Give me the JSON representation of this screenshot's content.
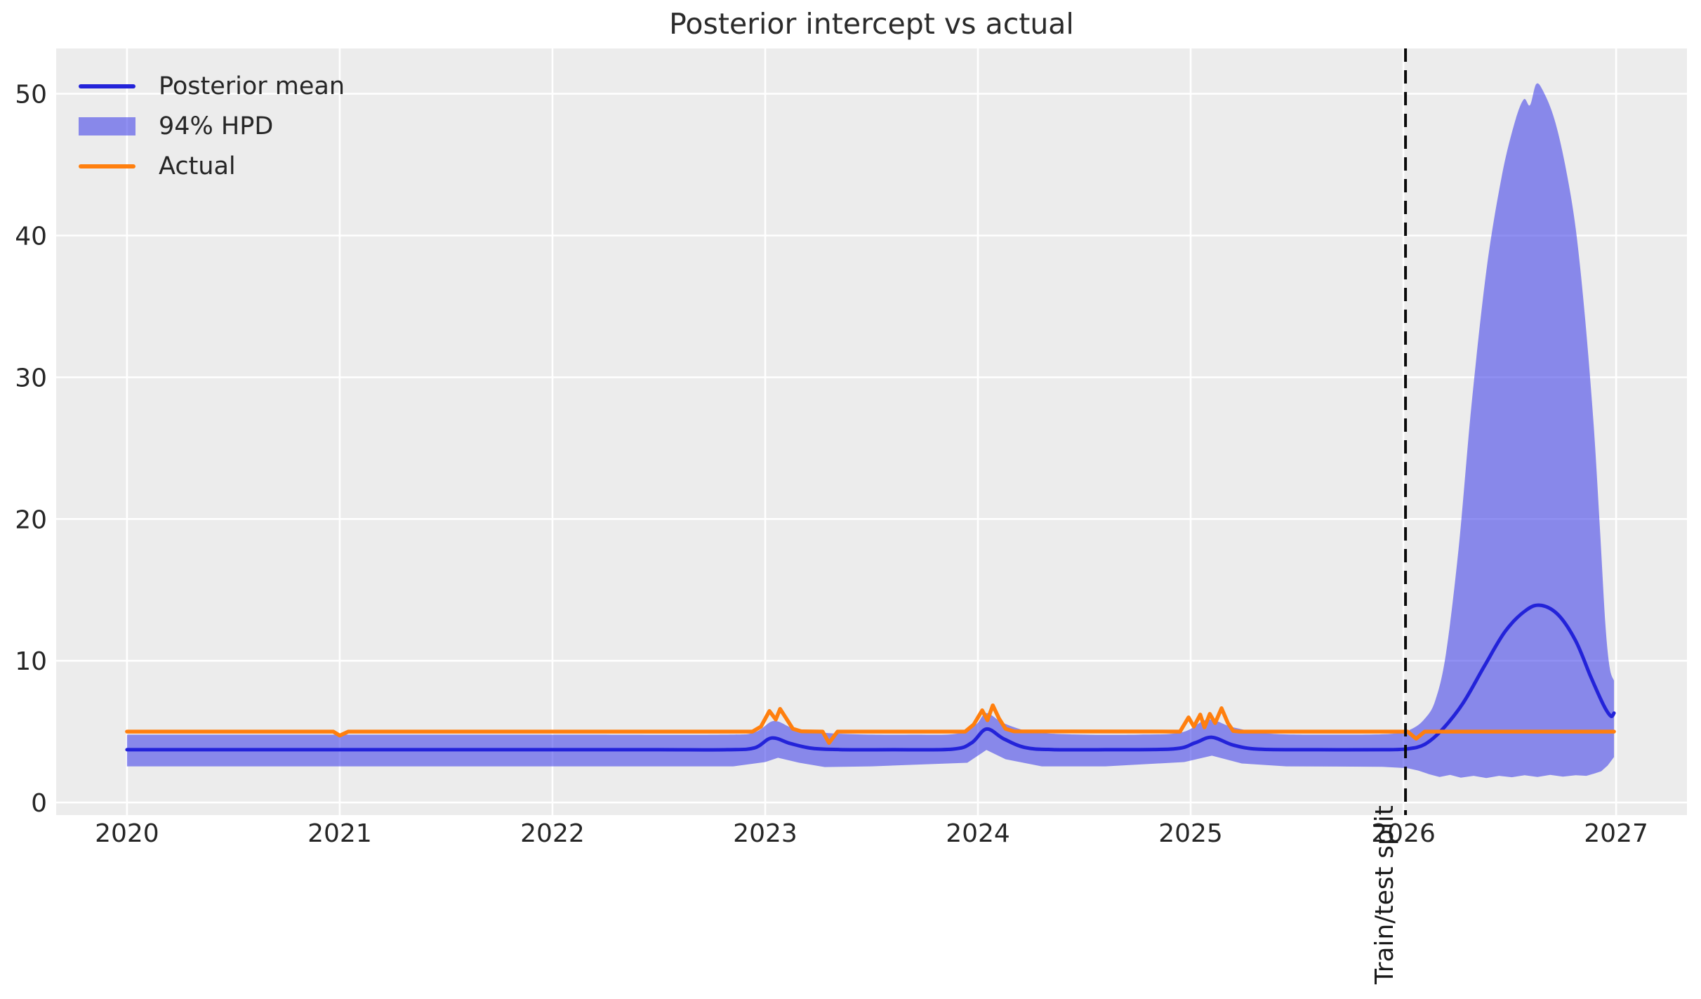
{
  "title": "Posterior intercept vs actual",
  "legend": {
    "items": [
      {
        "label": "Posterior mean",
        "swatch": "line",
        "color": "#2323d9"
      },
      {
        "label": "94% HPD",
        "swatch": "patch",
        "color": "rgba(60,60,232,0.57)"
      },
      {
        "label": "Actual",
        "swatch": "line",
        "color": "#ff7f0e"
      }
    ]
  },
  "annotation": {
    "split_label": "Train/test split",
    "split_year": 2026.01
  },
  "colors": {
    "plot_bg": "#ececec",
    "grid": "#ffffff",
    "mean_line": "#2323d9",
    "actual_line": "#ff7f0e",
    "band_fill": "rgba(60,60,232,0.57)",
    "split_line": "#0a0a0a",
    "text": "#262626"
  },
  "chart_data": {
    "type": "line",
    "title": "Posterior intercept vs actual",
    "xlabel": "",
    "ylabel": "",
    "xlim": [
      2019.667,
      2027.333
    ],
    "ylim": [
      -0.89,
      53.2
    ],
    "grid": true,
    "legend_position": "upper left",
    "x_ticks": [
      2020,
      2021,
      2022,
      2023,
      2024,
      2025,
      2026,
      2027
    ],
    "y_ticks": [
      0,
      10,
      20,
      30,
      40,
      50
    ],
    "vline": {
      "x": 2026.01,
      "style": "dashed",
      "label": "Train/test split"
    },
    "series": [
      {
        "name": "Posterior mean",
        "smooth": true,
        "width": 5,
        "points": [
          [
            2020.0,
            3.72
          ],
          [
            2020.5,
            3.72
          ],
          [
            2021.0,
            3.72
          ],
          [
            2021.5,
            3.72
          ],
          [
            2022.0,
            3.72
          ],
          [
            2022.5,
            3.72
          ],
          [
            2022.82,
            3.72
          ],
          [
            2022.95,
            3.85
          ],
          [
            2023.03,
            4.55
          ],
          [
            2023.12,
            4.15
          ],
          [
            2023.22,
            3.82
          ],
          [
            2023.35,
            3.73
          ],
          [
            2023.6,
            3.72
          ],
          [
            2023.88,
            3.76
          ],
          [
            2023.97,
            4.2
          ],
          [
            2024.04,
            5.18
          ],
          [
            2024.12,
            4.5
          ],
          [
            2024.22,
            3.88
          ],
          [
            2024.35,
            3.73
          ],
          [
            2024.6,
            3.72
          ],
          [
            2024.92,
            3.78
          ],
          [
            2025.02,
            4.2
          ],
          [
            2025.1,
            4.6
          ],
          [
            2025.2,
            4.05
          ],
          [
            2025.32,
            3.76
          ],
          [
            2025.6,
            3.72
          ],
          [
            2025.9,
            3.72
          ],
          [
            2026.02,
            3.78
          ],
          [
            2026.1,
            4.1
          ],
          [
            2026.18,
            5.1
          ],
          [
            2026.28,
            7.0
          ],
          [
            2026.38,
            9.6
          ],
          [
            2026.48,
            12.1
          ],
          [
            2026.58,
            13.6
          ],
          [
            2026.65,
            13.9
          ],
          [
            2026.73,
            13.2
          ],
          [
            2026.81,
            11.4
          ],
          [
            2026.88,
            8.9
          ],
          [
            2026.94,
            6.9
          ],
          [
            2026.975,
            6.1
          ],
          [
            2026.99,
            6.3
          ]
        ]
      },
      {
        "name": "Actual",
        "smooth": false,
        "width": 5.5,
        "points": [
          [
            2020.0,
            5
          ],
          [
            2020.97,
            5
          ],
          [
            2021.0,
            4.72
          ],
          [
            2021.04,
            5
          ],
          [
            2022.94,
            5
          ],
          [
            2022.98,
            5.35
          ],
          [
            2023.02,
            6.45
          ],
          [
            2023.05,
            5.85
          ],
          [
            2023.07,
            6.6
          ],
          [
            2023.1,
            5.9
          ],
          [
            2023.13,
            5.2
          ],
          [
            2023.17,
            5.02
          ],
          [
            2023.27,
            5.0
          ],
          [
            2023.3,
            4.2
          ],
          [
            2023.34,
            5.0
          ],
          [
            2023.94,
            5
          ],
          [
            2023.98,
            5.5
          ],
          [
            2024.02,
            6.5
          ],
          [
            2024.045,
            5.8
          ],
          [
            2024.07,
            6.85
          ],
          [
            2024.1,
            5.9
          ],
          [
            2024.13,
            5.2
          ],
          [
            2024.17,
            5.02
          ],
          [
            2024.95,
            5
          ],
          [
            2024.99,
            6.0
          ],
          [
            2025.015,
            5.35
          ],
          [
            2025.045,
            6.2
          ],
          [
            2025.065,
            5.3
          ],
          [
            2025.09,
            6.25
          ],
          [
            2025.115,
            5.6
          ],
          [
            2025.145,
            6.65
          ],
          [
            2025.175,
            5.6
          ],
          [
            2025.2,
            5.05
          ],
          [
            2025.23,
            5.0
          ],
          [
            2026.02,
            5.0
          ],
          [
            2026.06,
            4.5
          ],
          [
            2026.1,
            5.0
          ],
          [
            2026.99,
            5
          ]
        ]
      }
    ],
    "band": {
      "name": "94% HPD",
      "upper": [
        [
          2020.0,
          4.78
        ],
        [
          2020.7,
          4.78
        ],
        [
          2021.4,
          4.78
        ],
        [
          2022.1,
          4.78
        ],
        [
          2022.8,
          4.78
        ],
        [
          2022.95,
          4.95
        ],
        [
          2023.04,
          5.75
        ],
        [
          2023.13,
          5.25
        ],
        [
          2023.25,
          4.95
        ],
        [
          2023.45,
          4.8
        ],
        [
          2023.7,
          4.78
        ],
        [
          2023.9,
          4.85
        ],
        [
          2023.99,
          5.5
        ],
        [
          2024.04,
          6.3
        ],
        [
          2024.12,
          5.6
        ],
        [
          2024.25,
          5.0
        ],
        [
          2024.45,
          4.8
        ],
        [
          2024.75,
          4.78
        ],
        [
          2024.96,
          4.95
        ],
        [
          2025.08,
          5.85
        ],
        [
          2025.2,
          5.3
        ],
        [
          2025.38,
          4.85
        ],
        [
          2025.7,
          4.78
        ],
        [
          2025.95,
          4.85
        ],
        [
          2026.04,
          5.2
        ],
        [
          2026.1,
          5.9
        ],
        [
          2026.15,
          7.2
        ],
        [
          2026.2,
          10.5
        ],
        [
          2026.26,
          18
        ],
        [
          2026.32,
          28
        ],
        [
          2026.39,
          37.5
        ],
        [
          2026.46,
          44
        ],
        [
          2026.52,
          47.8
        ],
        [
          2026.565,
          49.6
        ],
        [
          2026.595,
          49.2
        ],
        [
          2026.625,
          50.7
        ],
        [
          2026.66,
          50.1
        ],
        [
          2026.71,
          48.2
        ],
        [
          2026.76,
          45
        ],
        [
          2026.81,
          40.5
        ],
        [
          2026.855,
          34
        ],
        [
          2026.895,
          26.5
        ],
        [
          2026.925,
          19
        ],
        [
          2026.95,
          12.5
        ],
        [
          2026.97,
          9.5
        ],
        [
          2026.99,
          8.6
        ]
      ],
      "lower": [
        [
          2020.0,
          2.55
        ],
        [
          2021.0,
          2.55
        ],
        [
          2022.0,
          2.55
        ],
        [
          2022.85,
          2.55
        ],
        [
          2023.0,
          2.85
        ],
        [
          2023.06,
          3.15
        ],
        [
          2023.16,
          2.8
        ],
        [
          2023.28,
          2.5
        ],
        [
          2023.5,
          2.55
        ],
        [
          2023.95,
          2.8
        ],
        [
          2024.04,
          3.7
        ],
        [
          2024.13,
          3.05
        ],
        [
          2024.3,
          2.55
        ],
        [
          2024.6,
          2.55
        ],
        [
          2024.97,
          2.85
        ],
        [
          2025.1,
          3.3
        ],
        [
          2025.24,
          2.75
        ],
        [
          2025.45,
          2.55
        ],
        [
          2025.9,
          2.52
        ],
        [
          2026.02,
          2.42
        ],
        [
          2026.07,
          2.25
        ],
        [
          2026.12,
          2.0
        ],
        [
          2026.17,
          1.8
        ],
        [
          2026.22,
          1.95
        ],
        [
          2026.27,
          1.75
        ],
        [
          2026.33,
          1.88
        ],
        [
          2026.39,
          1.72
        ],
        [
          2026.45,
          1.88
        ],
        [
          2026.51,
          1.78
        ],
        [
          2026.57,
          1.92
        ],
        [
          2026.63,
          1.8
        ],
        [
          2026.69,
          1.95
        ],
        [
          2026.75,
          1.82
        ],
        [
          2026.81,
          1.92
        ],
        [
          2026.86,
          1.88
        ],
        [
          2026.9,
          2.05
        ],
        [
          2026.93,
          2.2
        ],
        [
          2026.96,
          2.6
        ],
        [
          2026.99,
          3.2
        ]
      ]
    }
  }
}
